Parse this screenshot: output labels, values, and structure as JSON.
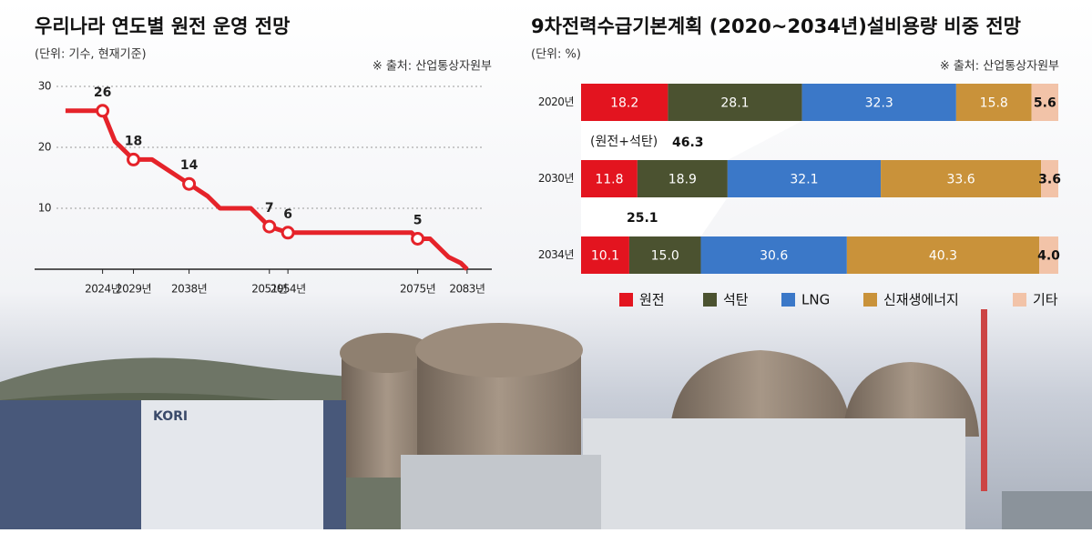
{
  "chart_data": [
    {
      "type": "line",
      "title": "우리나라 연도별 원전 운영 전망",
      "subtitle": "(단위: 기수, 현재기준)",
      "source": "※ 출처: 산업통상자원부",
      "x": [
        2018,
        2024,
        2026,
        2029,
        2032,
        2035,
        2038,
        2041,
        2043,
        2048,
        2051,
        2054,
        2074,
        2075,
        2077,
        2080,
        2082,
        2083
      ],
      "values": [
        26,
        26,
        21,
        18,
        18,
        16,
        14,
        12,
        10,
        10,
        7,
        6,
        6,
        5,
        5,
        2,
        1,
        0
      ],
      "color": "#e5232a",
      "labels": {
        "x": [
          2024,
          2029,
          2038,
          2051,
          2054,
          2075
        ],
        "values": [
          26,
          18,
          14,
          7,
          6,
          5
        ]
      },
      "xlim": [
        2013,
        2087
      ],
      "xticks": [
        {
          "value": 2024,
          "label": "2024년"
        },
        {
          "value": 2029,
          "label": "2029년"
        },
        {
          "value": 2038,
          "label": "2038년"
        },
        {
          "value": 2051,
          "label": "2051년"
        },
        {
          "value": 2054,
          "label": "2054년"
        },
        {
          "value": 2075,
          "label": "2075년"
        },
        {
          "value": 2083,
          "label": "2083년"
        }
      ],
      "ylim": [
        0,
        30
      ],
      "yticks": [
        10,
        20,
        30
      ],
      "grid": true
    },
    {
      "type": "stacked-barh",
      "title": "9차전력수급기본계획 (2020~2034년)설비용량 비중 전망",
      "subtitle": "(단위: %)",
      "source": "※ 출처: 산업통상자원부",
      "categories": [
        "2020년",
        "2030년",
        "2034년"
      ],
      "series": [
        {
          "name": "원전",
          "color": "#e3141f",
          "values": [
            18.2,
            11.8,
            10.1
          ]
        },
        {
          "name": "석탄",
          "color": "#4b5230",
          "values": [
            28.1,
            18.9,
            15.0
          ],
          "value_labels": [
            "28.1",
            "18.9",
            "15.0"
          ]
        },
        {
          "name": "LNG",
          "color": "#3b78c8",
          "values": [
            32.3,
            32.1,
            30.6
          ]
        },
        {
          "name": "신재생에너지",
          "color": "#c9923a",
          "values": [
            15.8,
            33.6,
            40.3
          ]
        },
        {
          "name": "기타",
          "color": "#f2c3a8",
          "values": [
            5.6,
            3.6,
            4.0
          ],
          "value_labels": [
            "5.6",
            "3.6",
            "4.0"
          ]
        }
      ],
      "annotation": "(원전+석탄)",
      "sums": [
        46.3,
        25.1
      ],
      "xlim": [
        0,
        100
      ]
    }
  ]
}
